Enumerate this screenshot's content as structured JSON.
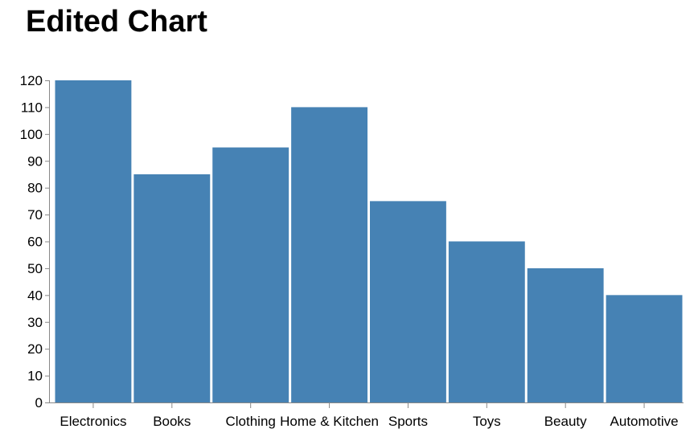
{
  "chart_data": {
    "type": "bar",
    "title": "Edited Chart",
    "categories": [
      "Electronics",
      "Books",
      "Clothing",
      "Home & Kitchen",
      "Sports",
      "Toys",
      "Beauty",
      "Automotive"
    ],
    "values": [
      120,
      85,
      95,
      110,
      75,
      60,
      50,
      40
    ],
    "xlabel": "",
    "ylabel": "",
    "ylim": [
      0,
      120
    ],
    "yticks": [
      0,
      10,
      20,
      30,
      40,
      50,
      60,
      70,
      80,
      90,
      100,
      110,
      120
    ],
    "grid": false,
    "legend": "none",
    "bar_color": "#4682b4"
  }
}
